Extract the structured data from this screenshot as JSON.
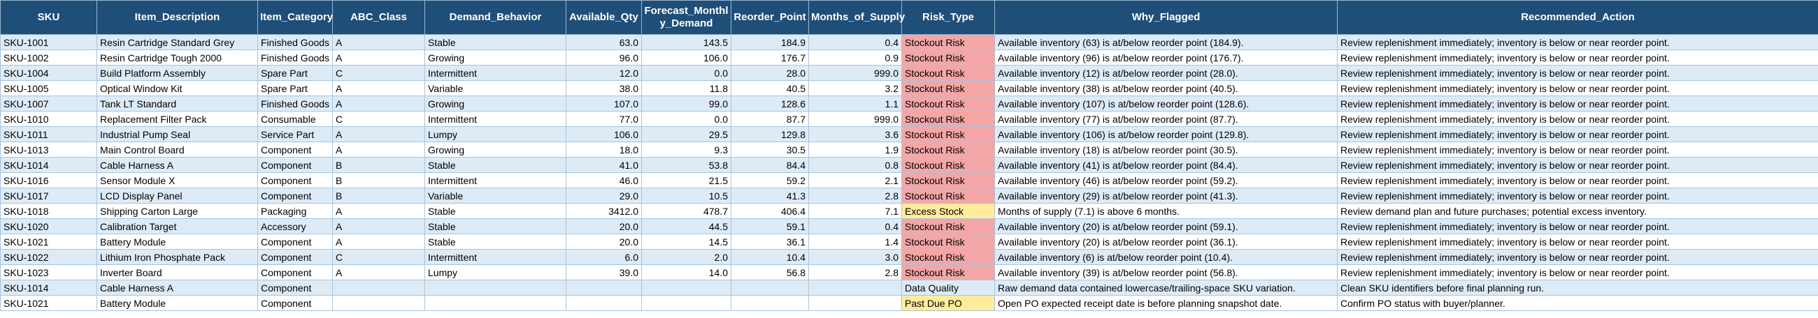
{
  "columns": [
    "SKU",
    "Item_Description",
    "Item_Category",
    "ABC_Class",
    "Demand_Behavior",
    "Available_Qty",
    "Forecast_Monthly_Demand",
    "Reorder_Point",
    "Months_of_Supply",
    "Risk_Type",
    "Why_Flagged",
    "Recommended_Action"
  ],
  "column_display": [
    "SKU",
    "Item_Description",
    "Item_Category",
    "ABC_Class",
    "Demand_Behavior",
    "Available_Qty",
    "Forecast_Monthl\ny_Demand",
    "Reorder_Point",
    "Months_of_Supply",
    "Risk_Type",
    "Why_Flagged",
    "Recommended_Action"
  ],
  "colors": {
    "header_bg": "#1f4e79",
    "band": "#ddebf7",
    "stockout": "#f4a6a6",
    "excess": "#ffec9c"
  },
  "rows": [
    [
      "SKU-1001",
      "Resin Cartridge Standard Grey",
      "Finished Goods",
      "A",
      "Stable",
      "63.0",
      "143.5",
      "184.9",
      "0.4",
      "Stockout Risk",
      "Available inventory (63) is at/below reorder point (184.9).",
      "Review replenishment immediately; inventory is below or near reorder point."
    ],
    [
      "SKU-1002",
      "Resin Cartridge Tough 2000",
      "Finished Goods",
      "A",
      "Growing",
      "96.0",
      "106.0",
      "176.7",
      "0.9",
      "Stockout Risk",
      "Available inventory (96) is at/below reorder point (176.7).",
      "Review replenishment immediately; inventory is below or near reorder point."
    ],
    [
      "SKU-1004",
      "Build Platform Assembly",
      "Spare Part",
      "C",
      "Intermittent",
      "12.0",
      "0.0",
      "28.0",
      "999.0",
      "Stockout Risk",
      "Available inventory (12) is at/below reorder point (28.0).",
      "Review replenishment immediately; inventory is below or near reorder point."
    ],
    [
      "SKU-1005",
      "Optical Window Kit",
      "Spare Part",
      "A",
      "Variable",
      "38.0",
      "11.8",
      "40.5",
      "3.2",
      "Stockout Risk",
      "Available inventory (38) is at/below reorder point (40.5).",
      "Review replenishment immediately; inventory is below or near reorder point."
    ],
    [
      "SKU-1007",
      "Tank LT Standard",
      "Finished Goods",
      "A",
      "Growing",
      "107.0",
      "99.0",
      "128.6",
      "1.1",
      "Stockout Risk",
      "Available inventory (107) is at/below reorder point (128.6).",
      "Review replenishment immediately; inventory is below or near reorder point."
    ],
    [
      "SKU-1010",
      "Replacement Filter Pack",
      "Consumable",
      "C",
      "Intermittent",
      "77.0",
      "0.0",
      "87.7",
      "999.0",
      "Stockout Risk",
      "Available inventory (77) is at/below reorder point (87.7).",
      "Review replenishment immediately; inventory is below or near reorder point."
    ],
    [
      "SKU-1011",
      "Industrial Pump Seal",
      "Service Part",
      "A",
      "Lumpy",
      "106.0",
      "29.5",
      "129.8",
      "3.6",
      "Stockout Risk",
      "Available inventory (106) is at/below reorder point (129.8).",
      "Review replenishment immediately; inventory is below or near reorder point."
    ],
    [
      "SKU-1013",
      "Main Control Board",
      "Component",
      "A",
      "Growing",
      "18.0",
      "9.3",
      "30.5",
      "1.9",
      "Stockout Risk",
      "Available inventory (18) is at/below reorder point (30.5).",
      "Review replenishment immediately; inventory is below or near reorder point."
    ],
    [
      "SKU-1014",
      "Cable Harness A",
      "Component",
      "B",
      "Stable",
      "41.0",
      "53.8",
      "84.4",
      "0.8",
      "Stockout Risk",
      "Available inventory (41) is at/below reorder point (84.4).",
      "Review replenishment immediately; inventory is below or near reorder point."
    ],
    [
      "SKU-1016",
      "Sensor Module X",
      "Component",
      "B",
      "Intermittent",
      "46.0",
      "21.5",
      "59.2",
      "2.1",
      "Stockout Risk",
      "Available inventory (46) is at/below reorder point (59.2).",
      "Review replenishment immediately; inventory is below or near reorder point."
    ],
    [
      "SKU-1017",
      "LCD Display Panel",
      "Component",
      "B",
      "Variable",
      "29.0",
      "10.5",
      "41.3",
      "2.8",
      "Stockout Risk",
      "Available inventory (29) is at/below reorder point (41.3).",
      "Review replenishment immediately; inventory is below or near reorder point."
    ],
    [
      "SKU-1018",
      "Shipping Carton Large",
      "Packaging",
      "A",
      "Stable",
      "3412.0",
      "478.7",
      "406.4",
      "7.1",
      "Excess Stock",
      "Months of supply (7.1) is above 6 months.",
      "Review demand plan and future purchases; potential excess inventory."
    ],
    [
      "SKU-1020",
      "Calibration Target",
      "Accessory",
      "A",
      "Stable",
      "20.0",
      "44.5",
      "59.1",
      "0.4",
      "Stockout Risk",
      "Available inventory (20) is at/below reorder point (59.1).",
      "Review replenishment immediately; inventory is below or near reorder point."
    ],
    [
      "SKU-1021",
      "Battery Module",
      "Component",
      "A",
      "Stable",
      "20.0",
      "14.5",
      "36.1",
      "1.4",
      "Stockout Risk",
      "Available inventory (20) is at/below reorder point (36.1).",
      "Review replenishment immediately; inventory is below or near reorder point."
    ],
    [
      "SKU-1022",
      "Lithium Iron Phosphate Pack",
      "Component",
      "C",
      "Intermittent",
      "6.0",
      "2.0",
      "10.4",
      "3.0",
      "Stockout Risk",
      "Available inventory (6) is at/below reorder point (10.4).",
      "Review replenishment immediately; inventory is below or near reorder point."
    ],
    [
      "SKU-1023",
      "Inverter Board",
      "Component",
      "A",
      "Lumpy",
      "39.0",
      "14.0",
      "56.8",
      "2.8",
      "Stockout Risk",
      "Available inventory (39) is at/below reorder point (56.8).",
      "Review replenishment immediately; inventory is below or near reorder point."
    ],
    [
      "SKU-1014",
      "Cable Harness A",
      "Component",
      "",
      "",
      "",
      "",
      "",
      "",
      "Data Quality",
      "Raw demand data contained lowercase/trailing-space SKU variation.",
      "Clean SKU identifiers before final planning run."
    ],
    [
      "SKU-1021",
      "Battery Module",
      "Component",
      "",
      "",
      "",
      "",
      "",
      "",
      "Past Due PO",
      "Open PO expected receipt date is before planning snapshot date.",
      "Confirm PO status with buyer/planner."
    ]
  ]
}
